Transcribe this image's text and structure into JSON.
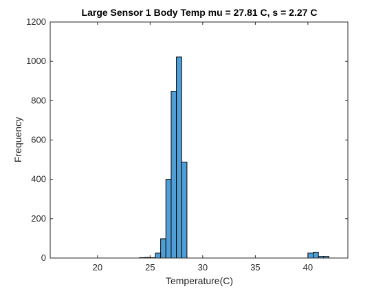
{
  "chart_data": {
    "type": "bar",
    "title": "Large Sensor 1 Body Temp mu = 27.81 C, s = 2.27 C",
    "xlabel": "Temperature(C)",
    "ylabel": "Frequency",
    "xlim": [
      15.5,
      43.8
    ],
    "ylim": [
      0,
      1200
    ],
    "xticks": [
      20,
      25,
      30,
      35,
      40
    ],
    "yticks": [
      0,
      200,
      400,
      600,
      800,
      1000,
      1200
    ],
    "grid": false,
    "bin_width": 0.5,
    "bins": [
      {
        "x0": 24.0,
        "x1": 24.5,
        "value": 2
      },
      {
        "x0": 24.5,
        "x1": 25.0,
        "value": 3
      },
      {
        "x0": 25.0,
        "x1": 25.5,
        "value": 2
      },
      {
        "x0": 25.5,
        "x1": 26.0,
        "value": 25
      },
      {
        "x0": 26.0,
        "x1": 26.5,
        "value": 98
      },
      {
        "x0": 26.5,
        "x1": 27.0,
        "value": 400
      },
      {
        "x0": 27.0,
        "x1": 27.5,
        "value": 848
      },
      {
        "x0": 27.5,
        "x1": 28.0,
        "value": 1022
      },
      {
        "x0": 28.0,
        "x1": 28.5,
        "value": 488
      },
      {
        "x0": 40.0,
        "x1": 40.5,
        "value": 25
      },
      {
        "x0": 40.5,
        "x1": 41.0,
        "value": 30
      },
      {
        "x0": 41.0,
        "x1": 41.5,
        "value": 8
      },
      {
        "x0": 41.5,
        "x1": 42.0,
        "value": 8
      }
    ],
    "colors": {
      "bar_fill": "#4f9fd6",
      "bar_edge": "#000000",
      "axis": "#262626"
    }
  }
}
